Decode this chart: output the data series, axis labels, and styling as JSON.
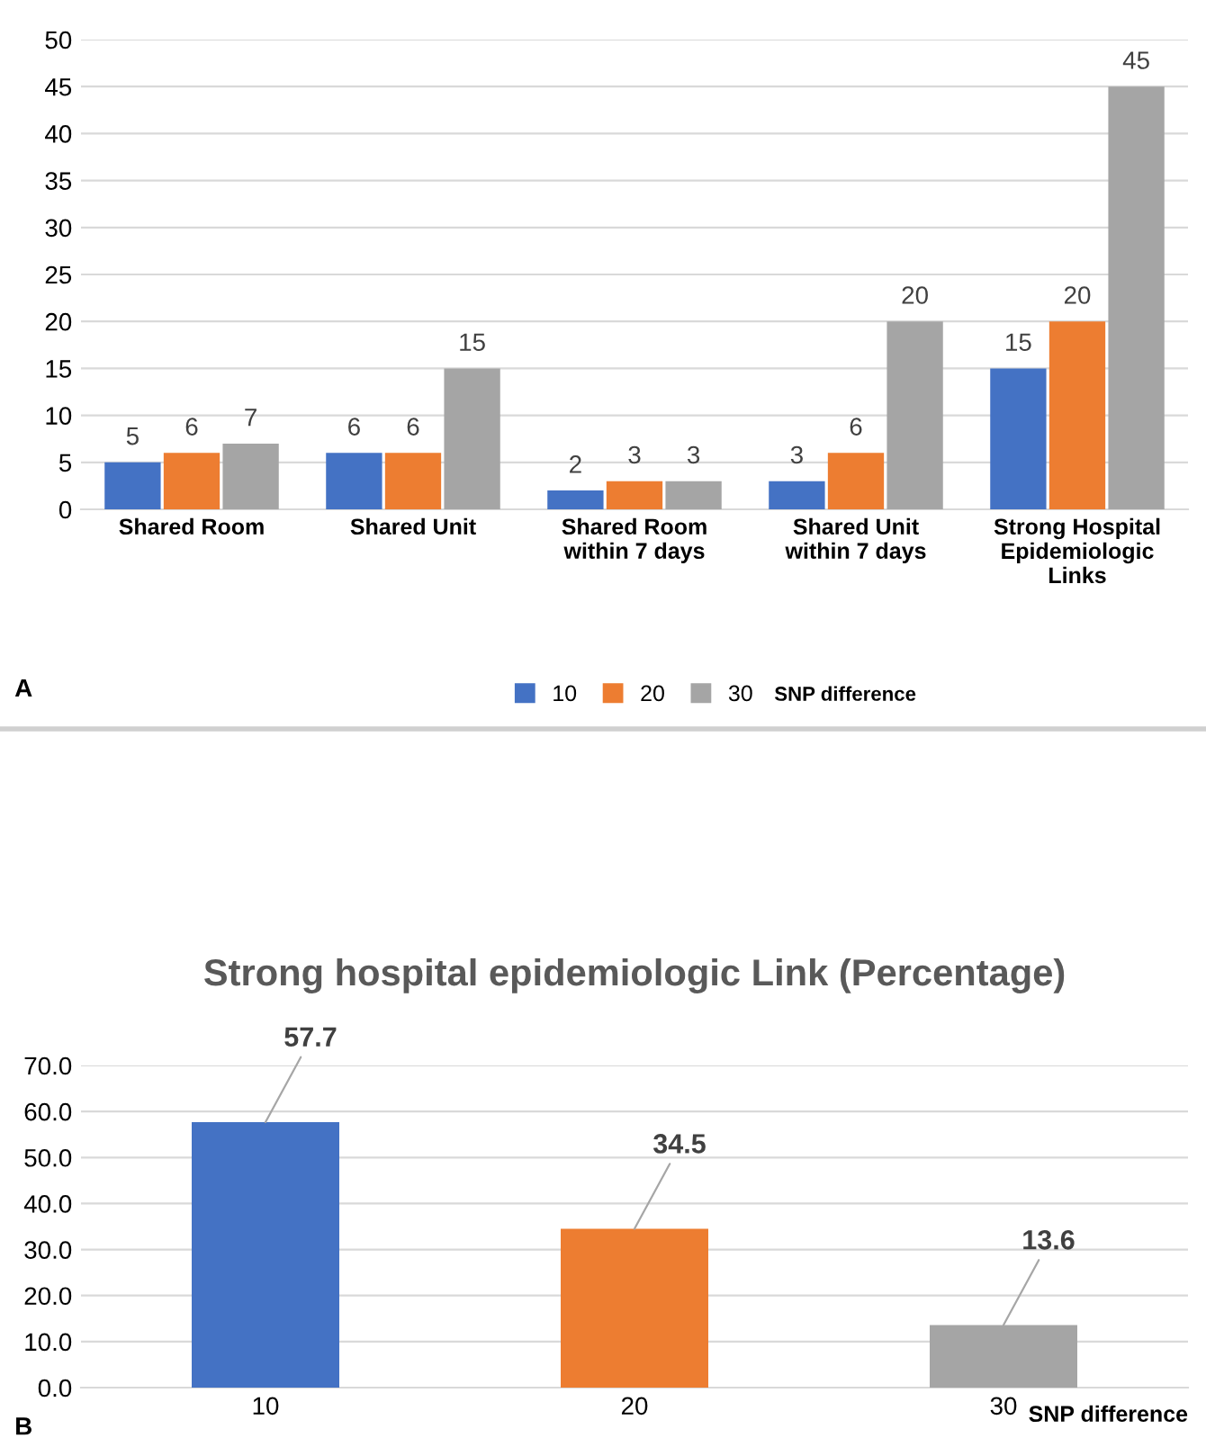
{
  "chart_data": [
    {
      "type": "bar",
      "categories": [
        "Shared Room",
        "Shared Unit",
        "Shared Room\nwithin 7 days",
        "Shared Unit\nwithin 7 days",
        "Strong Hospital\nEpidemiologic\nLinks"
      ],
      "series": [
        {
          "name": "10",
          "color": "#4472c4",
          "values": [
            5,
            6,
            2,
            3,
            15
          ]
        },
        {
          "name": "20",
          "color": "#ed7d31",
          "values": [
            6,
            6,
            3,
            6,
            20
          ]
        },
        {
          "name": "30",
          "color": "#a5a5a5",
          "values": [
            7,
            15,
            3,
            20,
            45
          ]
        }
      ],
      "ylim": [
        0,
        50
      ],
      "yticks": [
        0,
        5,
        10,
        15,
        20,
        25,
        30,
        35,
        40,
        45,
        50
      ],
      "grid": "y",
      "legend": "bottom",
      "legend_title": "SNP difference",
      "data_labels": true,
      "annotations": [
        "A"
      ]
    },
    {
      "type": "bar",
      "title": "Strong hospital epidemiologic Link (Percentage)",
      "categories": [
        "10",
        "20",
        "30"
      ],
      "xlabel": "SNP difference",
      "values": [
        57.7,
        34.5,
        13.6
      ],
      "colors": [
        "#4472c4",
        "#ed7d31",
        "#a5a5a5"
      ],
      "ylim": [
        0,
        70
      ],
      "yticks": [
        {
          "value": 0,
          "label": "0.0"
        },
        {
          "value": 10,
          "label": "10.0"
        },
        {
          "value": 20,
          "label": "20.0"
        },
        {
          "value": 30,
          "label": "30.0"
        },
        {
          "value": 40,
          "label": "40.0"
        },
        {
          "value": 50,
          "label": "50.0"
        },
        {
          "value": 60,
          "label": "60.0"
        },
        {
          "value": 70,
          "label": "70.0"
        }
      ],
      "grid": "y",
      "data_labels": true,
      "annotations": [
        "B"
      ]
    }
  ]
}
